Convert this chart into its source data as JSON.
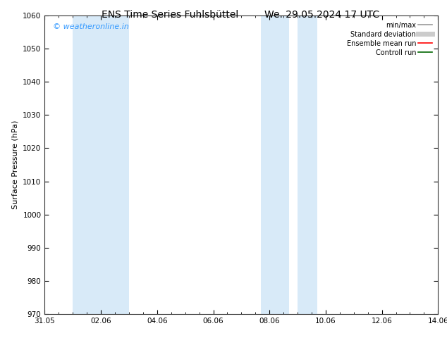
{
  "title_left": "ENS Time Series Fuhlsbüttel",
  "title_right": "We. 29.05.2024 17 UTC",
  "ylabel": "Surface Pressure (hPa)",
  "ylim": [
    970,
    1060
  ],
  "yticks": [
    970,
    980,
    990,
    1000,
    1010,
    1020,
    1030,
    1040,
    1050,
    1060
  ],
  "x_start_days": 0,
  "x_end_days": 14,
  "x_tick_labels": [
    "31.05",
    "02.06",
    "04.06",
    "06.06",
    "08.06",
    "10.06",
    "12.06",
    "14.06"
  ],
  "x_tick_positions": [
    0,
    2,
    4,
    6,
    8,
    10,
    12,
    14
  ],
  "shaded_bands": [
    {
      "x_start": 1.0,
      "x_end": 3.0
    },
    {
      "x_start": 7.7,
      "x_end": 8.7
    },
    {
      "x_start": 9.0,
      "x_end": 9.7
    }
  ],
  "band_color": "#d8eaf8",
  "background_color": "#ffffff",
  "watermark_text": "© weatheronline.in",
  "watermark_color": "#3399ff",
  "legend_items": [
    {
      "label": "min/max",
      "color": "#999999",
      "lw": 1.2,
      "style": "solid"
    },
    {
      "label": "Standard deviation",
      "color": "#cccccc",
      "lw": 5,
      "style": "solid"
    },
    {
      "label": "Ensemble mean run",
      "color": "#ff0000",
      "lw": 1.2,
      "style": "solid"
    },
    {
      "label": "Controll run",
      "color": "#006600",
      "lw": 1.2,
      "style": "solid"
    }
  ],
  "title_fontsize": 10,
  "axis_label_fontsize": 8,
  "tick_fontsize": 7.5,
  "legend_fontsize": 7,
  "watermark_fontsize": 8
}
